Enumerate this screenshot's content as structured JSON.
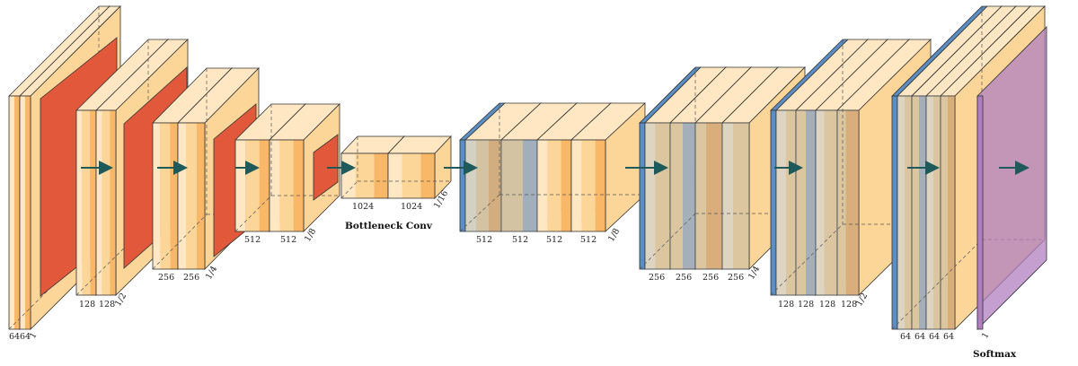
{
  "colors": {
    "conv": "#fcd598",
    "conv_light": "#fee7c2",
    "conv_mid": "#f9b768",
    "pool": "#e2583b",
    "pool_side": "#c5432a",
    "unpool": "#5b8ec5",
    "unpool_side": "#3e6f9f",
    "concat": "#b8b8b8",
    "softmax": "#b07fc0",
    "arrow": "#1f5a5a",
    "edge": "#333333"
  },
  "arrow_icon": "right-arrow-icon",
  "blocks": [
    {
      "name": "enc-block-1",
      "labels": [
        "64",
        "64"
      ],
      "scale": "1"
    },
    {
      "name": "enc-block-2",
      "labels": [
        "128",
        "128"
      ],
      "scale": "1/2"
    },
    {
      "name": "enc-block-3",
      "labels": [
        "256",
        "256"
      ],
      "scale": "1/4"
    },
    {
      "name": "enc-block-4",
      "labels": [
        "512",
        "512"
      ],
      "scale": "1/8"
    },
    {
      "name": "bottleneck",
      "labels": [
        "1024",
        "1024"
      ],
      "scale": "1/16",
      "caption": "Bottleneck Conv"
    },
    {
      "name": "dec-block-1",
      "labels": [
        "512",
        "512",
        "512",
        "512"
      ],
      "scale": "1/8"
    },
    {
      "name": "dec-block-2",
      "labels": [
        "256",
        "256",
        "256",
        "256"
      ],
      "scale": "1/4"
    },
    {
      "name": "dec-block-3",
      "labels": [
        "128",
        "128",
        "128",
        "128"
      ],
      "scale": "1/2"
    },
    {
      "name": "dec-block-4",
      "labels": [
        "64",
        "64",
        "64",
        "64"
      ],
      "scale": ""
    },
    {
      "name": "softmax-block",
      "labels": [],
      "scale": "1",
      "caption": "Softmax"
    }
  ]
}
